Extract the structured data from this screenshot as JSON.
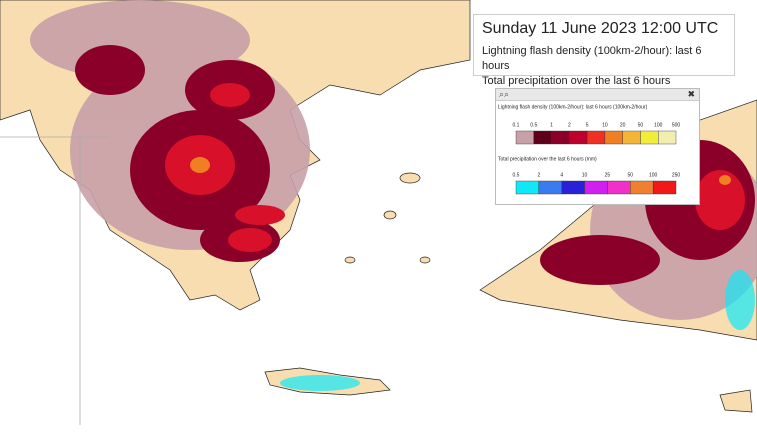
{
  "header": {
    "title": "Sunday 11 June 2023 12:00 UTC",
    "lines": [
      "Lightning flash density (100km-2/hour): last 6 hours",
      "Total precipitation over the last 6 hours"
    ]
  },
  "legend_panel": {
    "lightning": {
      "title": "Lightning flash density (100km-2/hour): last 6 hours (100km-2/hour)",
      "ticks": [
        0.1,
        0.5,
        1,
        2,
        5,
        10,
        20,
        50,
        100,
        500
      ],
      "colors": [
        "#c8a0a8",
        "#5e0018",
        "#8a0028",
        "#c0002c",
        "#f03022",
        "#f07f22",
        "#f4b436",
        "#f2ec3a",
        "#f2eeb0"
      ]
    },
    "precipitation": {
      "title": "Total precipitation over the last 6 hours (mm)",
      "ticks": [
        0.5,
        2,
        4,
        10,
        25,
        50,
        100,
        250
      ],
      "colors": [
        "#10e8f8",
        "#3a7cf0",
        "#2a20d8",
        "#d020f0",
        "#f030c8",
        "#f08030",
        "#f01818"
      ]
    }
  }
}
